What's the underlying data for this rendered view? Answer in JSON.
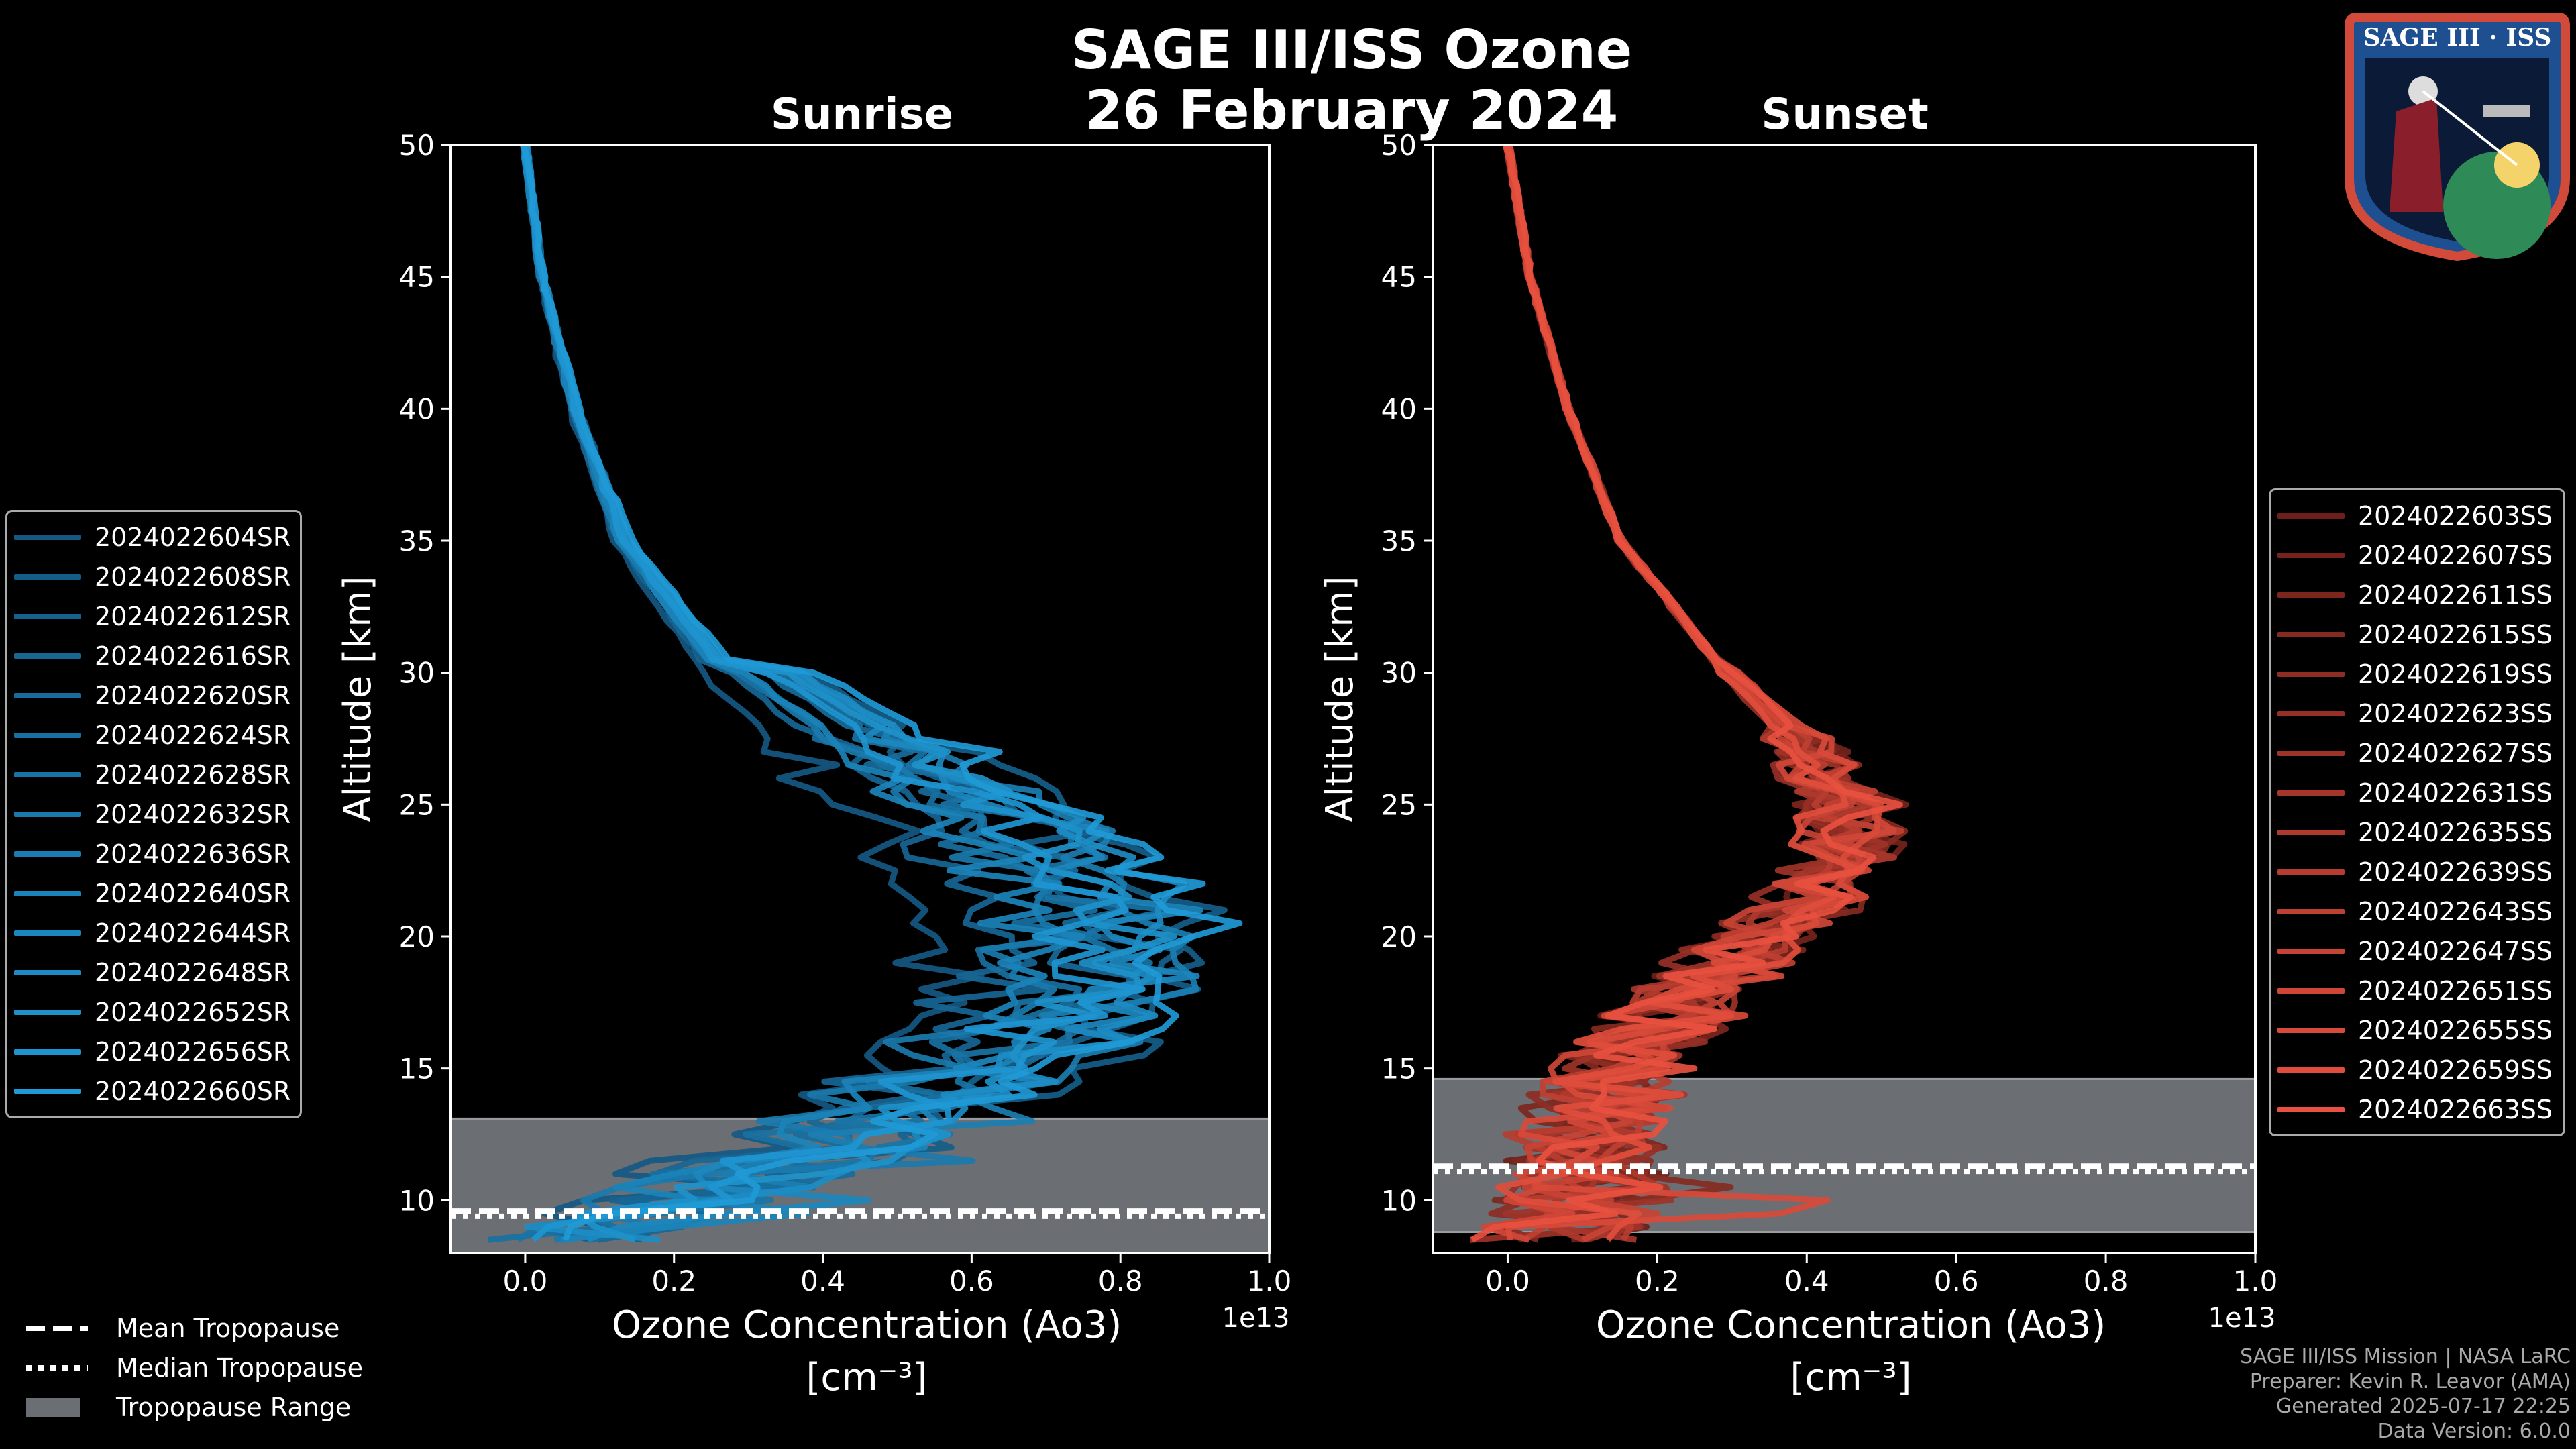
{
  "title_line1": "SAGE III/ISS Ozone",
  "title_line2": "26 February 2024",
  "panels": {
    "sunrise": {
      "title": "Sunrise"
    },
    "sunset": {
      "title": "Sunset"
    }
  },
  "axis": {
    "xlabel_line1": "Ozone Concentration (Ao3)",
    "xlabel_line2": "[cm⁻³]",
    "ylabel": "Altitude [km]",
    "offset_label": "1e13",
    "xticks": [
      "0.0",
      "0.2",
      "0.4",
      "0.6",
      "0.8",
      "1.0"
    ],
    "yticks": [
      "10",
      "15",
      "20",
      "25",
      "30",
      "35",
      "40",
      "45",
      "50"
    ]
  },
  "legend_sunrise": [
    "2024022604SR",
    "2024022608SR",
    "2024022612SR",
    "2024022616SR",
    "2024022620SR",
    "2024022624SR",
    "2024022628SR",
    "2024022632SR",
    "2024022636SR",
    "2024022640SR",
    "2024022644SR",
    "2024022648SR",
    "2024022652SR",
    "2024022656SR",
    "2024022660SR"
  ],
  "legend_sunset": [
    "2024022603SS",
    "2024022607SS",
    "2024022611SS",
    "2024022615SS",
    "2024022619SS",
    "2024022623SS",
    "2024022627SS",
    "2024022631SS",
    "2024022635SS",
    "2024022639SS",
    "2024022643SS",
    "2024022647SS",
    "2024022651SS",
    "2024022655SS",
    "2024022659SS",
    "2024022663SS"
  ],
  "bottom_legend": {
    "mean": "Mean Tropopause",
    "median": "Median Tropopause",
    "range": "Tropopause Range"
  },
  "footer": [
    "SAGE III/ISS Mission | NASA LaRC",
    "Preparer: Kevin R. Leavor (AMA)",
    "Generated 2025-07-17 22:25",
    "Data Version: 6.0.0"
  ],
  "logo": {
    "text": "SAGE III · ISS"
  },
  "colors": {
    "sunrise": "#1f9ad6",
    "sunset": "#e8503f",
    "tropo_fill": "#6b6e73",
    "background": "#000000"
  },
  "chart_data": [
    {
      "type": "line",
      "name": "Sunrise",
      "title": "Sunrise",
      "xlabel": "Ozone Concentration (Ao3) [cm^-3]",
      "ylabel": "Altitude [km]",
      "x_scale": 10000000000000.0,
      "xlim": [
        -0.1,
        1.0
      ],
      "ylim": [
        8,
        50
      ],
      "series_names": [
        "2024022604SR",
        "2024022608SR",
        "2024022612SR",
        "2024022616SR",
        "2024022620SR",
        "2024022624SR",
        "2024022628SR",
        "2024022632SR",
        "2024022636SR",
        "2024022640SR",
        "2024022644SR",
        "2024022648SR",
        "2024022652SR",
        "2024022656SR",
        "2024022660SR"
      ],
      "typical_profile": {
        "altitude_km": [
          50,
          45,
          40,
          35,
          30,
          27,
          24,
          21,
          18,
          15,
          12,
          10,
          8.5
        ],
        "ozone_e13": [
          0.0,
          0.02,
          0.06,
          0.12,
          0.24,
          0.36,
          0.48,
          0.56,
          0.55,
          0.45,
          0.3,
          0.15,
          0.05
        ]
      },
      "peak_range_e13": [
        0.55,
        0.92
      ],
      "tropopause": {
        "mean_km": 9.6,
        "median_km": 9.4,
        "range_km": [
          8,
          13.1
        ]
      }
    },
    {
      "type": "line",
      "name": "Sunset",
      "title": "Sunset",
      "xlabel": "Ozone Concentration (Ao3) [cm^-3]",
      "ylabel": "Altitude [km]",
      "x_scale": 10000000000000.0,
      "xlim": [
        -0.1,
        1.0
      ],
      "ylim": [
        8,
        50
      ],
      "series_names": [
        "2024022603SS",
        "2024022607SS",
        "2024022611SS",
        "2024022615SS",
        "2024022619SS",
        "2024022623SS",
        "2024022627SS",
        "2024022631SS",
        "2024022635SS",
        "2024022639SS",
        "2024022643SS",
        "2024022647SS",
        "2024022651SS",
        "2024022655SS",
        "2024022659SS",
        "2024022663SS"
      ],
      "typical_profile": {
        "altitude_km": [
          50,
          45,
          40,
          35,
          30,
          27,
          25,
          23,
          21,
          18,
          15,
          12,
          10,
          8.5
        ],
        "ozone_e13": [
          0.0,
          0.03,
          0.08,
          0.15,
          0.29,
          0.4,
          0.45,
          0.45,
          0.38,
          0.25,
          0.15,
          0.1,
          0.1,
          0.05
        ]
      },
      "peak_range_e13": [
        0.44,
        0.48
      ],
      "tropopause": {
        "mean_km": 11.3,
        "median_km": 11.1,
        "range_km": [
          8.8,
          14.6
        ]
      }
    }
  ]
}
